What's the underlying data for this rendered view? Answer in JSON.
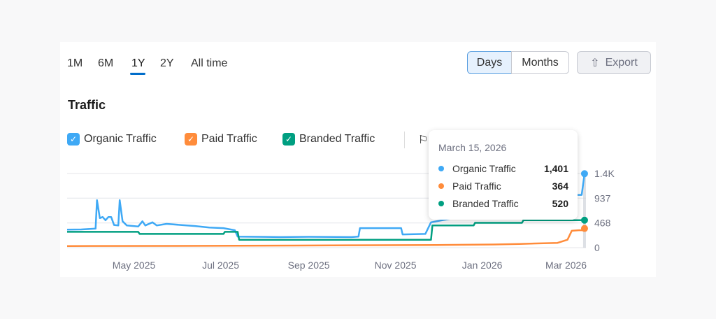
{
  "ranges": [
    "1M",
    "6M",
    "1Y",
    "2Y",
    "All time"
  ],
  "active_range": "1Y",
  "buttons": {
    "days": "Days",
    "months": "Months",
    "export": "Export"
  },
  "title": "Traffic",
  "legend": [
    {
      "label": "Organic Traffic",
      "color": "#3fa9f5"
    },
    {
      "label": "Paid Traffic",
      "color": "#ff8c3b"
    },
    {
      "label": "Branded Traffic",
      "color": "#009f81"
    }
  ],
  "tooltip": {
    "date": "March 15, 2026",
    "rows": [
      {
        "label": "Organic Traffic",
        "value": "1,401",
        "color": "#3fa9f5"
      },
      {
        "label": "Paid Traffic",
        "value": "364",
        "color": "#ff8c3b"
      },
      {
        "label": "Branded Traffic",
        "value": "520",
        "color": "#009f81"
      }
    ]
  },
  "chart_data": {
    "type": "line",
    "title": "Traffic",
    "x_unit": "days since Mar 15, 2025",
    "x_range": [
      0,
      365
    ],
    "ylim": [
      0,
      1405
    ],
    "y_ticks": [
      {
        "value": 0,
        "label": "0"
      },
      {
        "value": 468,
        "label": "468"
      },
      {
        "value": 937,
        "label": "937"
      },
      {
        "value": 1405,
        "label": "1.4K"
      }
    ],
    "x_ticks": [
      {
        "day": 47,
        "label": "May 2025"
      },
      {
        "day": 108,
        "label": "Jul 2025"
      },
      {
        "day": 170,
        "label": "Sep 2025"
      },
      {
        "day": 231,
        "label": "Nov 2025"
      },
      {
        "day": 292,
        "label": "Jan 2026"
      },
      {
        "day": 351,
        "label": "Mar 2026"
      }
    ],
    "series": [
      {
        "name": "Organic Traffic",
        "color": "#3fa9f5",
        "points": [
          [
            0,
            340
          ],
          [
            10,
            345
          ],
          [
            20,
            360
          ],
          [
            21,
            900
          ],
          [
            23,
            560
          ],
          [
            25,
            580
          ],
          [
            27,
            520
          ],
          [
            29,
            580
          ],
          [
            31,
            580
          ],
          [
            33,
            430
          ],
          [
            36,
            420
          ],
          [
            37,
            900
          ],
          [
            39,
            500
          ],
          [
            42,
            420
          ],
          [
            50,
            400
          ],
          [
            53,
            500
          ],
          [
            55,
            420
          ],
          [
            60,
            480
          ],
          [
            63,
            420
          ],
          [
            70,
            450
          ],
          [
            80,
            430
          ],
          [
            90,
            410
          ],
          [
            100,
            380
          ],
          [
            110,
            370
          ],
          [
            118,
            330
          ],
          [
            120,
            210
          ],
          [
            150,
            200
          ],
          [
            170,
            205
          ],
          [
            200,
            200
          ],
          [
            205,
            210
          ],
          [
            206,
            370
          ],
          [
            235,
            370
          ],
          [
            236,
            250
          ],
          [
            252,
            260
          ],
          [
            256,
            480
          ],
          [
            300,
            700
          ],
          [
            340,
            950
          ],
          [
            355,
            1000
          ],
          [
            362,
            1000
          ],
          [
            364,
            1401
          ]
        ]
      },
      {
        "name": "Paid Traffic",
        "color": "#ff8c3b",
        "points": [
          [
            0,
            30
          ],
          [
            100,
            35
          ],
          [
            160,
            40
          ],
          [
            200,
            45
          ],
          [
            260,
            50
          ],
          [
            300,
            60
          ],
          [
            318,
            70
          ],
          [
            345,
            90
          ],
          [
            352,
            150
          ],
          [
            355,
            320
          ],
          [
            360,
            330
          ],
          [
            362,
            330
          ],
          [
            364,
            364
          ]
        ]
      },
      {
        "name": "Branded Traffic",
        "color": "#009f81",
        "points": [
          [
            0,
            300
          ],
          [
            50,
            300
          ],
          [
            51,
            260
          ],
          [
            110,
            260
          ],
          [
            111,
            300
          ],
          [
            120,
            300
          ],
          [
            121,
            150
          ],
          [
            256,
            150
          ],
          [
            257,
            420
          ],
          [
            286,
            420
          ],
          [
            287,
            470
          ],
          [
            320,
            470
          ],
          [
            321,
            520
          ],
          [
            364,
            520
          ]
        ]
      }
    ],
    "hover_day": 364
  }
}
